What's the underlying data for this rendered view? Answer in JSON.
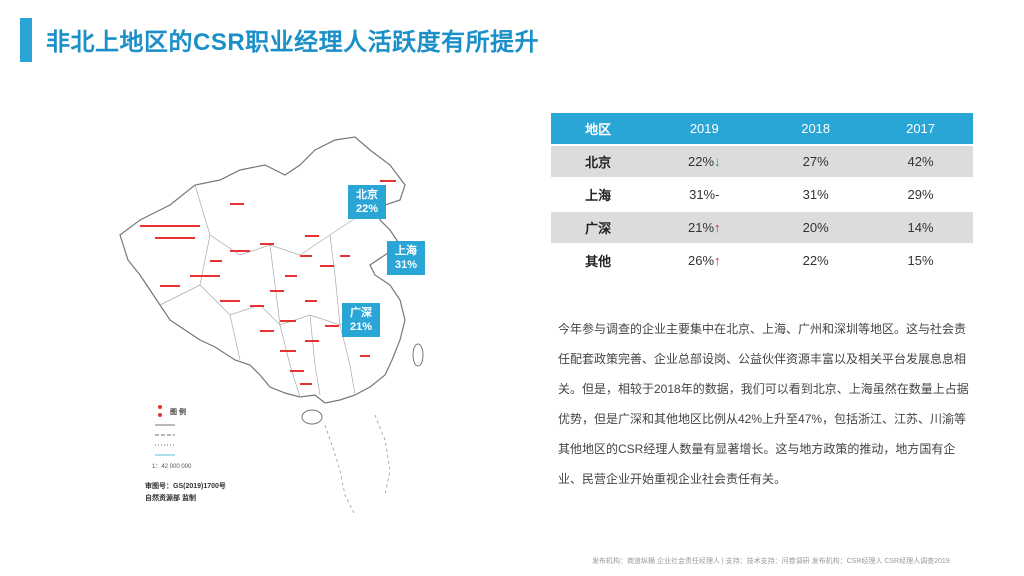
{
  "title": "非北上地区的CSR职业经理人活跃度有所提升",
  "map": {
    "callouts": [
      {
        "name": "北京",
        "value": "22%"
      },
      {
        "name": "上海",
        "value": "31%"
      },
      {
        "name": "广深",
        "value": "21%"
      }
    ],
    "legend_title": "图 例",
    "map_number": "审图号：GS(2019)1700号",
    "map_publisher": "自然资源部 监制",
    "scale": "1：42 000 000"
  },
  "table": {
    "headers": [
      "地区",
      "2019",
      "2018",
      "2017"
    ],
    "rows": [
      {
        "region": "北京",
        "y2019": "22%",
        "trend": "↓",
        "trend_type": "down",
        "y2018": "27%",
        "y2017": "42%"
      },
      {
        "region": "上海",
        "y2019": "31%",
        "trend": "-",
        "trend_type": "flat",
        "y2018": "31%",
        "y2017": "29%"
      },
      {
        "region": "广深",
        "y2019": "21%",
        "trend": "↑",
        "trend_type": "up",
        "y2018": "20%",
        "y2017": "14%"
      },
      {
        "region": "其他",
        "y2019": "26%",
        "trend": "↑",
        "trend_type": "up",
        "y2018": "22%",
        "y2017": "15%"
      }
    ]
  },
  "paragraph": "今年参与调查的企业主要集中在北京、上海、广州和深圳等地区。这与社会责任配套政策完善、企业总部设岗、公益伙伴资源丰富以及相关平台发展息息相关。但是，相较于2018年的数据，我们可以看到北京、上海虽然在数量上占据优势，但是广深和其他地区比例从42%上升至47%，包括浙江、江苏、川渝等其他地区的CSR经理人数量有显著增长。这与地方政策的推动，地方国有企业、民营企业开始重视企业社会责任有关。",
  "footer": "发布机构：商道纵横 企业社会责任经理人 | 支持：技术支持：问卷调研 发布机构：CSR经理人 CSR经理人调查2019"
}
